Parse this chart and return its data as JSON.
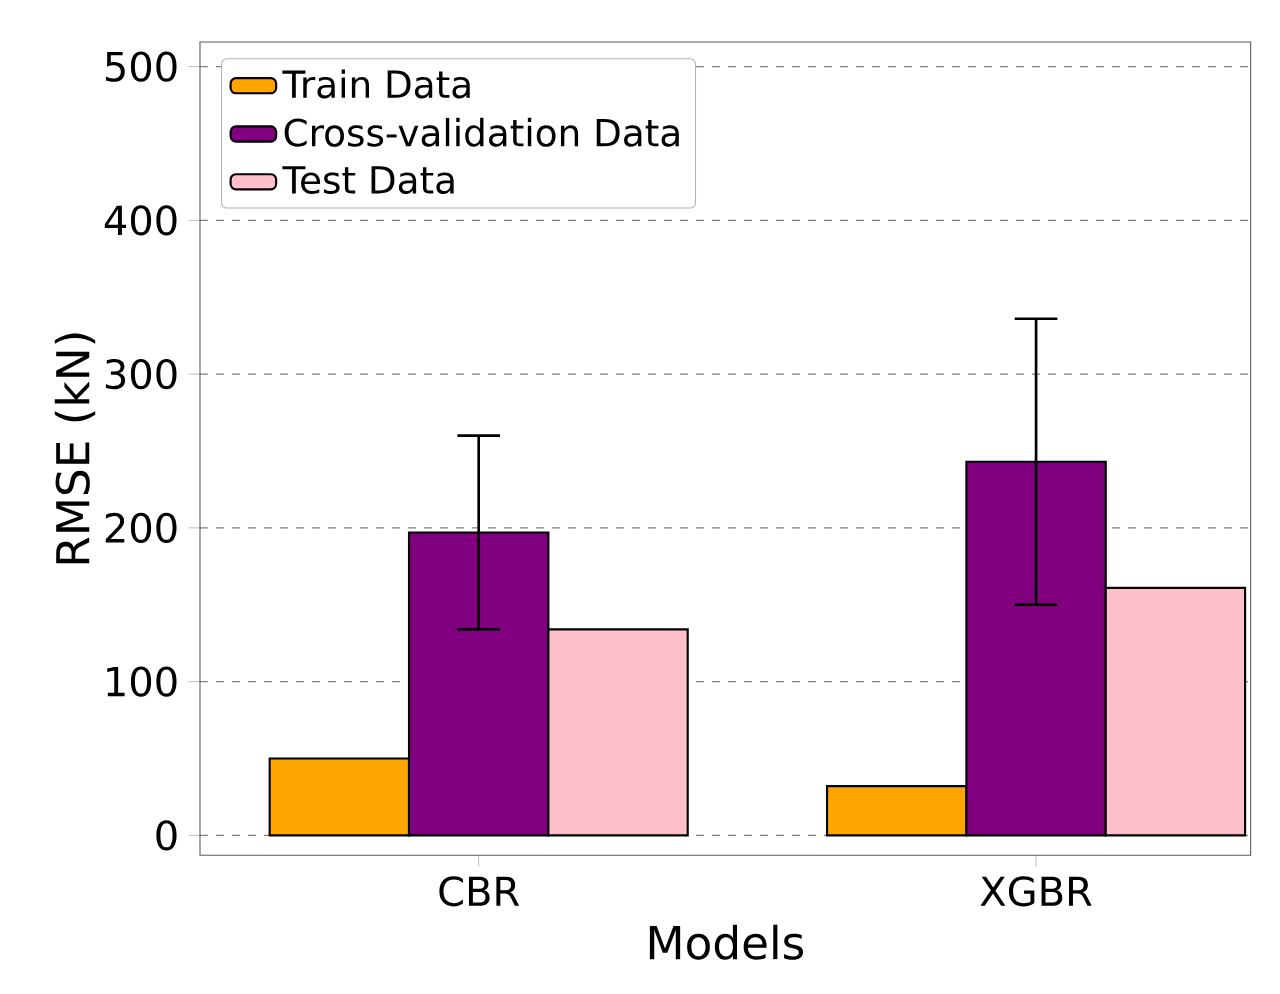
{
  "chart_data": {
    "type": "bar",
    "xlabel": "Models",
    "ylabel": "RMSE (kN)",
    "categories": [
      "CBR",
      "XGBR"
    ],
    "series": [
      {
        "name": "Train Data",
        "color": "#ffa500",
        "values": [
          50,
          32
        ]
      },
      {
        "name": "Cross-validation Data",
        "color": "#800080",
        "values": [
          197,
          243
        ],
        "errors": [
          63,
          93
        ]
      },
      {
        "name": "Test Data",
        "color": "#ffc0cb",
        "values": [
          134,
          161
        ]
      }
    ],
    "ylim": [
      -13,
      516
    ],
    "yticks": [
      0,
      100,
      200,
      300,
      400,
      500
    ],
    "grid": "y",
    "legend": "top left"
  }
}
